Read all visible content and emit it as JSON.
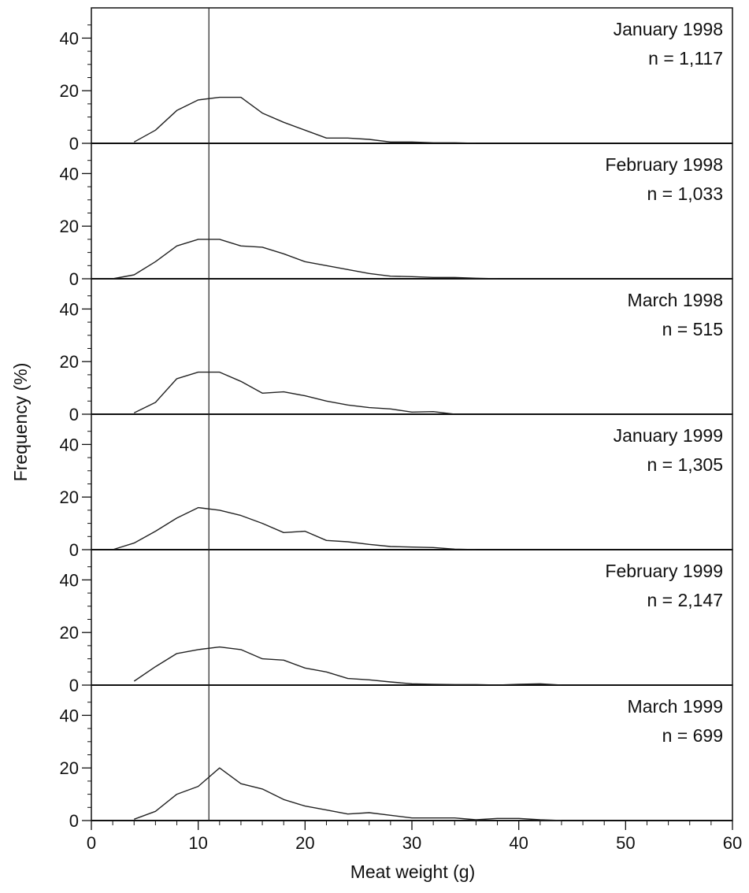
{
  "chart_data": {
    "type": "line",
    "xlabel": "Meat weight (g)",
    "ylabel": "Frequency (%)",
    "xlim": [
      0,
      60
    ],
    "ylim": [
      0,
      50
    ],
    "x_ticks": [
      0,
      10,
      20,
      30,
      40,
      50,
      60
    ],
    "y_ticks": [
      0,
      20,
      40
    ],
    "reference_line_x": 11,
    "panels": [
      {
        "title": "January 1998",
        "n_label": "n = 1,117",
        "points": [
          [
            4,
            0.5
          ],
          [
            6,
            5
          ],
          [
            8,
            12.5
          ],
          [
            10,
            16.5
          ],
          [
            12,
            17.5
          ],
          [
            14,
            17.5
          ],
          [
            16,
            11.5
          ],
          [
            18,
            8
          ],
          [
            20,
            5
          ],
          [
            22,
            2
          ],
          [
            24,
            2
          ],
          [
            26,
            1.5
          ],
          [
            28,
            0.5
          ],
          [
            30,
            0.5
          ],
          [
            32,
            0.2
          ],
          [
            34,
            0.2
          ],
          [
            36,
            0
          ]
        ]
      },
      {
        "title": "February 1998",
        "n_label": "n = 1,033",
        "points": [
          [
            2,
            0
          ],
          [
            4,
            1.5
          ],
          [
            6,
            6.5
          ],
          [
            8,
            12.5
          ],
          [
            10,
            15
          ],
          [
            12,
            15
          ],
          [
            14,
            12.5
          ],
          [
            16,
            12
          ],
          [
            18,
            9.5
          ],
          [
            20,
            6.5
          ],
          [
            22,
            5
          ],
          [
            24,
            3.5
          ],
          [
            26,
            2
          ],
          [
            28,
            1
          ],
          [
            30,
            0.8
          ],
          [
            32,
            0.5
          ],
          [
            34,
            0.5
          ],
          [
            36,
            0.2
          ],
          [
            38,
            0
          ]
        ]
      },
      {
        "title": "March 1998",
        "n_label": "n = 515",
        "points": [
          [
            4,
            0.5
          ],
          [
            6,
            4.5
          ],
          [
            8,
            13.5
          ],
          [
            10,
            16
          ],
          [
            12,
            16
          ],
          [
            14,
            12.5
          ],
          [
            16,
            8
          ],
          [
            18,
            8.5
          ],
          [
            20,
            7
          ],
          [
            22,
            5
          ],
          [
            24,
            3.5
          ],
          [
            26,
            2.5
          ],
          [
            28,
            2
          ],
          [
            30,
            0.8
          ],
          [
            32,
            1
          ],
          [
            34,
            0
          ]
        ]
      },
      {
        "title": "January 1999",
        "n_label": "n = 1,305",
        "points": [
          [
            2,
            0
          ],
          [
            4,
            2.5
          ],
          [
            6,
            7
          ],
          [
            8,
            12
          ],
          [
            10,
            16
          ],
          [
            12,
            15
          ],
          [
            14,
            13
          ],
          [
            16,
            10
          ],
          [
            18,
            6.5
          ],
          [
            20,
            7
          ],
          [
            22,
            3.5
          ],
          [
            24,
            3
          ],
          [
            26,
            2
          ],
          [
            28,
            1.2
          ],
          [
            30,
            1
          ],
          [
            32,
            0.8
          ],
          [
            34,
            0.2
          ],
          [
            36,
            0
          ]
        ]
      },
      {
        "title": "February 1999",
        "n_label": "n = 2,147",
        "points": [
          [
            4,
            1.5
          ],
          [
            6,
            7
          ],
          [
            8,
            12
          ],
          [
            10,
            13.5
          ],
          [
            12,
            14.5
          ],
          [
            14,
            13.5
          ],
          [
            16,
            10
          ],
          [
            18,
            9.5
          ],
          [
            20,
            6.5
          ],
          [
            22,
            5
          ],
          [
            24,
            2.5
          ],
          [
            26,
            2
          ],
          [
            28,
            1.2
          ],
          [
            30,
            0.5
          ],
          [
            32,
            0.3
          ],
          [
            34,
            0.2
          ],
          [
            36,
            0.2
          ],
          [
            38,
            0
          ],
          [
            40,
            0.3
          ],
          [
            42,
            0.5
          ],
          [
            44,
            0
          ]
        ]
      },
      {
        "title": "March 1999",
        "n_label": "n = 699",
        "points": [
          [
            4,
            0.5
          ],
          [
            6,
            3.5
          ],
          [
            8,
            10
          ],
          [
            10,
            13
          ],
          [
            12,
            20
          ],
          [
            14,
            14
          ],
          [
            16,
            12
          ],
          [
            18,
            8
          ],
          [
            20,
            5.5
          ],
          [
            22,
            4
          ],
          [
            24,
            2.5
          ],
          [
            26,
            3
          ],
          [
            28,
            2
          ],
          [
            30,
            1
          ],
          [
            32,
            1
          ],
          [
            34,
            1
          ],
          [
            36,
            0.3
          ],
          [
            38,
            0.8
          ],
          [
            40,
            0.8
          ],
          [
            42,
            0.3
          ],
          [
            44,
            0
          ]
        ]
      }
    ]
  }
}
